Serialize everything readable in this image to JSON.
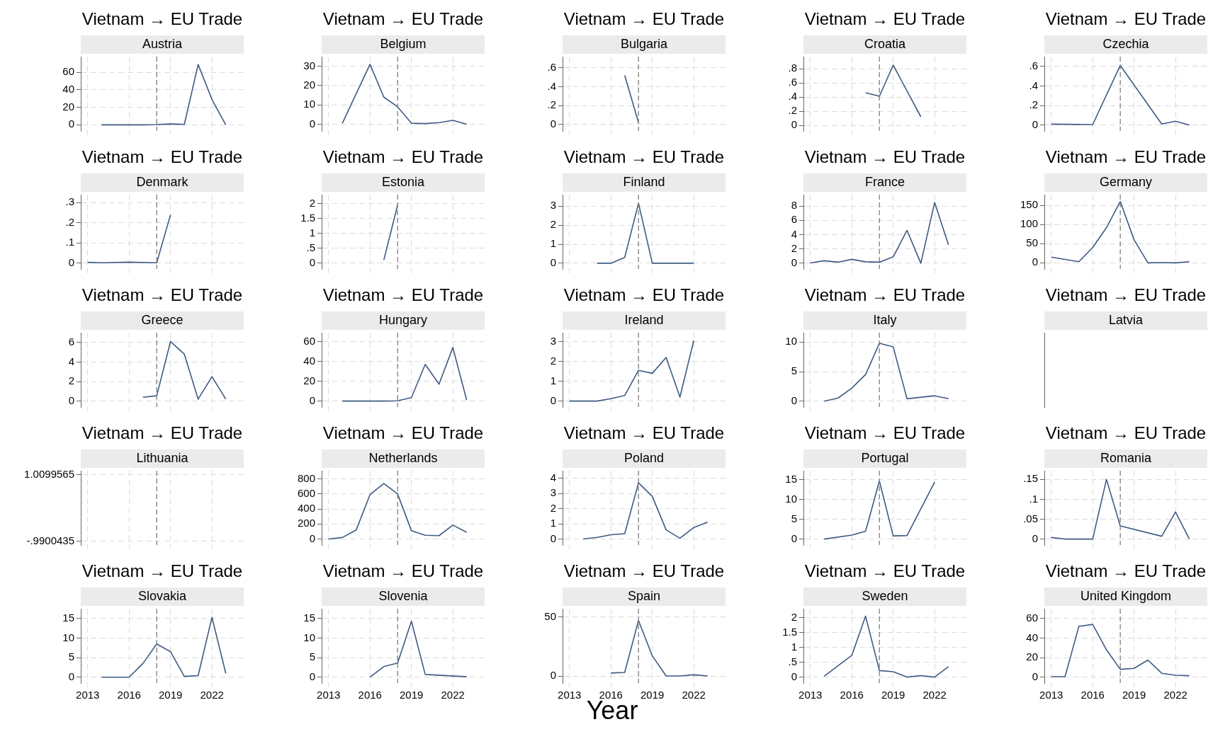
{
  "chart_data": [
    {
      "type": "line",
      "title": "Vietnam → EU Trade",
      "subtitle": "Austria",
      "xlim": [
        2012.5,
        2024.3
      ],
      "xticks": [
        2013,
        2016,
        2019,
        2022
      ],
      "ylim": [
        -7,
        78
      ],
      "yticks": [
        0,
        20,
        40,
        60
      ],
      "grid": true,
      "marker": "none",
      "tick_labels": "y",
      "ref_lines": [
        {
          "axis": "x",
          "value": 2018,
          "color": "#7f7f7f",
          "line_style": "dashed"
        }
      ],
      "series": [
        {
          "color": "#3e5a82",
          "x": [
            2014,
            2015,
            2016,
            2017,
            2018,
            2019,
            2020,
            2021,
            2022,
            2023
          ],
          "values": [
            0,
            0,
            0,
            0,
            0.3,
            1,
            0.5,
            69,
            29,
            0
          ]
        }
      ]
    },
    {
      "type": "line",
      "title": "Vietnam → EU Trade",
      "subtitle": "Belgium",
      "xlim": [
        2012.5,
        2024.3
      ],
      "xticks": [
        2013,
        2016,
        2019,
        2022
      ],
      "ylim": [
        -3.5,
        35
      ],
      "yticks": [
        0,
        10,
        20,
        30
      ],
      "grid": true,
      "marker": "none",
      "tick_labels": "y",
      "ref_lines": [
        {
          "axis": "x",
          "value": 2018,
          "color": "#7f7f7f",
          "line_style": "dashed"
        }
      ],
      "series": [
        {
          "color": "#3e5a82",
          "x": [
            2014,
            2016,
            2017,
            2018,
            2019,
            2020,
            2021,
            2022,
            2023
          ],
          "values": [
            0.5,
            31,
            14,
            9,
            0.5,
            0.3,
            0.8,
            2,
            0
          ]
        }
      ]
    },
    {
      "type": "line",
      "title": "Vietnam → EU Trade",
      "subtitle": "Bulgaria",
      "xlim": [
        2012.5,
        2024.3
      ],
      "xticks": [
        2013,
        2016,
        2019,
        2022
      ],
      "ylim": [
        -0.07,
        0.72
      ],
      "yticks": [
        0,
        {
          "value": 0.2,
          "label": ".2"
        },
        {
          "value": 0.4,
          "label": ".4"
        },
        {
          "value": 0.6,
          "label": ".6"
        }
      ],
      "grid": true,
      "marker": "none",
      "tick_labels": "y",
      "ref_lines": [
        {
          "axis": "x",
          "value": 2018,
          "color": "#7f7f7f",
          "line_style": "dashed"
        }
      ],
      "series": [
        {
          "color": "#3e5a82",
          "x": [
            2017,
            2018
          ],
          "values": [
            0.52,
            0.02
          ]
        }
      ]
    },
    {
      "type": "line",
      "title": "Vietnam → EU Trade",
      "subtitle": "Croatia",
      "xlim": [
        2012.5,
        2024.3
      ],
      "xticks": [
        2013,
        2016,
        2019,
        2022
      ],
      "ylim": [
        -0.08,
        0.97
      ],
      "yticks": [
        0,
        {
          "value": 0.2,
          "label": ".2"
        },
        {
          "value": 0.4,
          "label": ".4"
        },
        {
          "value": 0.6,
          "label": ".6"
        },
        {
          "value": 0.8,
          "label": ".8"
        }
      ],
      "grid": true,
      "marker": "none",
      "tick_labels": "y",
      "ref_lines": [
        {
          "axis": "x",
          "value": 2018,
          "color": "#7f7f7f",
          "line_style": "dashed"
        }
      ],
      "series": [
        {
          "color": "#3e5a82",
          "x": [
            2017,
            2018,
            2019,
            2021
          ],
          "values": [
            0.46,
            0.41,
            0.85,
            0.12
          ]
        }
      ]
    },
    {
      "type": "line",
      "title": "Vietnam → EU Trade",
      "subtitle": "Czechia",
      "xlim": [
        2012.5,
        2024.3
      ],
      "xticks": [
        2013,
        2016,
        2019,
        2022
      ],
      "ylim": [
        -0.06,
        0.7
      ],
      "yticks": [
        0,
        {
          "value": 0.2,
          "label": ".2"
        },
        {
          "value": 0.4,
          "label": ".4"
        },
        {
          "value": 0.6,
          "label": ".6"
        }
      ],
      "grid": true,
      "marker": "none",
      "tick_labels": "y",
      "ref_lines": [
        {
          "axis": "x",
          "value": 2018,
          "color": "#7f7f7f",
          "line_style": "dashed"
        }
      ],
      "series": [
        {
          "color": "#3e5a82",
          "x": [
            2013,
            2016,
            2018,
            2021,
            2022,
            2023
          ],
          "values": [
            0.01,
            0.005,
            0.61,
            0.01,
            0.04,
            0
          ]
        }
      ]
    },
    {
      "type": "line",
      "title": "Vietnam → EU Trade",
      "subtitle": "Denmark",
      "xlim": [
        2012.5,
        2024.3
      ],
      "xticks": [
        2013,
        2016,
        2019,
        2022
      ],
      "ylim": [
        -0.03,
        0.34
      ],
      "yticks": [
        0,
        {
          "value": 0.1,
          "label": ".1"
        },
        {
          "value": 0.2,
          "label": ".2"
        },
        {
          "value": 0.3,
          "label": ".3"
        }
      ],
      "grid": true,
      "marker": "none",
      "tick_labels": "y",
      "ref_lines": [
        {
          "axis": "x",
          "value": 2018,
          "color": "#7f7f7f",
          "line_style": "dashed"
        }
      ],
      "series": [
        {
          "color": "#3e5a82",
          "x": [
            2013,
            2014,
            2016,
            2018,
            2019
          ],
          "values": [
            0.003,
            0.001,
            0.004,
            0.001,
            0.24
          ]
        }
      ]
    },
    {
      "type": "line",
      "title": "Vietnam → EU Trade",
      "subtitle": "Estonia",
      "xlim": [
        2012.5,
        2024.3
      ],
      "xticks": [
        2013,
        2016,
        2019,
        2022
      ],
      "ylim": [
        -0.2,
        2.3
      ],
      "yticks": [
        0,
        {
          "value": 0.5,
          "label": ".5"
        },
        1,
        1.5,
        2
      ],
      "grid": true,
      "marker": "none",
      "tick_labels": "y",
      "ref_lines": [
        {
          "axis": "x",
          "value": 2018,
          "color": "#7f7f7f",
          "line_style": "dashed"
        }
      ],
      "series": [
        {
          "color": "#3e5a82",
          "x": [
            2017,
            2018
          ],
          "values": [
            0.1,
            1.95
          ]
        }
      ]
    },
    {
      "type": "line",
      "title": "Vietnam → EU Trade",
      "subtitle": "Finland",
      "xlim": [
        2012.5,
        2024.3
      ],
      "xticks": [
        2013,
        2016,
        2019,
        2022
      ],
      "ylim": [
        -0.3,
        3.6
      ],
      "yticks": [
        0,
        1,
        2,
        3
      ],
      "grid": true,
      "marker": "none",
      "tick_labels": "y",
      "ref_lines": [
        {
          "axis": "x",
          "value": 2018,
          "color": "#7f7f7f",
          "line_style": "dashed"
        }
      ],
      "series": [
        {
          "color": "#3e5a82",
          "x": [
            2015,
            2016,
            2017,
            2018,
            2019,
            2022
          ],
          "values": [
            0,
            0,
            0.3,
            3.15,
            0,
            0
          ]
        }
      ]
    },
    {
      "type": "line",
      "title": "Vietnam → EU Trade",
      "subtitle": "France",
      "xlim": [
        2012.5,
        2024.3
      ],
      "xticks": [
        2013,
        2016,
        2019,
        2022
      ],
      "ylim": [
        -0.8,
        9.6
      ],
      "yticks": [
        0,
        2,
        4,
        6,
        8
      ],
      "grid": true,
      "marker": "none",
      "tick_labels": "y",
      "ref_lines": [
        {
          "axis": "x",
          "value": 2018,
          "color": "#7f7f7f",
          "line_style": "dashed"
        }
      ],
      "series": [
        {
          "color": "#3e5a82",
          "x": [
            2013,
            2014,
            2015,
            2016,
            2017,
            2018,
            2019,
            2020,
            2021,
            2022,
            2023
          ],
          "values": [
            0.05,
            0.35,
            0.15,
            0.55,
            0.2,
            0.15,
            0.9,
            4.6,
            0,
            8.5,
            2.6
          ]
        }
      ]
    },
    {
      "type": "line",
      "title": "Vietnam → EU Trade",
      "subtitle": "Germany",
      "xlim": [
        2012.5,
        2024.3
      ],
      "xticks": [
        2013,
        2016,
        2019,
        2022
      ],
      "ylim": [
        -16,
        178
      ],
      "yticks": [
        0,
        50,
        100,
        150
      ],
      "grid": true,
      "marker": "none",
      "tick_labels": "y",
      "ref_lines": [
        {
          "axis": "x",
          "value": 2018,
          "color": "#7f7f7f",
          "line_style": "dashed"
        }
      ],
      "series": [
        {
          "color": "#3e5a82",
          "x": [
            2013,
            2015,
            2016,
            2017,
            2018,
            2019,
            2020,
            2021,
            2022,
            2023
          ],
          "values": [
            15,
            3,
            40,
            92,
            160,
            60,
            0,
            0.5,
            0,
            3
          ]
        }
      ]
    },
    {
      "type": "line",
      "title": "Vietnam → EU Trade",
      "subtitle": "Greece",
      "xlim": [
        2012.5,
        2024.3
      ],
      "xticks": [
        2013,
        2016,
        2019,
        2022
      ],
      "ylim": [
        -0.6,
        7
      ],
      "yticks": [
        0,
        2,
        4,
        6
      ],
      "grid": true,
      "marker": "none",
      "tick_labels": "y",
      "ref_lines": [
        {
          "axis": "x",
          "value": 2018,
          "color": "#7f7f7f",
          "line_style": "dashed"
        }
      ],
      "series": [
        {
          "color": "#3e5a82",
          "x": [
            2017,
            2018,
            2019,
            2020,
            2021,
            2022,
            2023
          ],
          "values": [
            0.4,
            0.55,
            6.1,
            4.8,
            0.2,
            2.5,
            0.2
          ]
        }
      ]
    },
    {
      "type": "line",
      "title": "Vietnam → EU Trade",
      "subtitle": "Hungary",
      "xlim": [
        2012.5,
        2024.3
      ],
      "xticks": [
        2013,
        2016,
        2019,
        2022
      ],
      "ylim": [
        -6,
        69
      ],
      "yticks": [
        0,
        20,
        40,
        60
      ],
      "grid": true,
      "marker": "none",
      "tick_labels": "y",
      "ref_lines": [
        {
          "axis": "x",
          "value": 2018,
          "color": "#7f7f7f",
          "line_style": "dashed"
        }
      ],
      "series": [
        {
          "color": "#3e5a82",
          "x": [
            2014,
            2015,
            2016,
            2017,
            2018,
            2019,
            2020,
            2021,
            2022,
            2023
          ],
          "values": [
            0,
            0,
            0,
            0,
            0.3,
            3.5,
            37,
            17,
            54,
            1
          ]
        }
      ]
    },
    {
      "type": "line",
      "title": "Vietnam → EU Trade",
      "subtitle": "Ireland",
      "xlim": [
        2012.5,
        2024.3
      ],
      "xticks": [
        2013,
        2016,
        2019,
        2022
      ],
      "ylim": [
        -0.3,
        3.45
      ],
      "yticks": [
        0,
        1,
        2,
        3
      ],
      "grid": true,
      "marker": "none",
      "tick_labels": "y",
      "ref_lines": [
        {
          "axis": "x",
          "value": 2018,
          "color": "#7f7f7f",
          "line_style": "dashed"
        }
      ],
      "series": [
        {
          "color": "#3e5a82",
          "x": [
            2013,
            2014,
            2015,
            2016,
            2017,
            2018,
            2019,
            2020,
            2021,
            2022
          ],
          "values": [
            0,
            0,
            0,
            0.12,
            0.28,
            1.55,
            1.4,
            2.2,
            0.2,
            3.05
          ]
        }
      ]
    },
    {
      "type": "line",
      "title": "Vietnam → EU Trade",
      "subtitle": "Italy",
      "xlim": [
        2012.5,
        2024.3
      ],
      "xticks": [
        2013,
        2016,
        2019,
        2022
      ],
      "ylim": [
        -1,
        11.6
      ],
      "yticks": [
        0,
        5,
        10
      ],
      "grid": true,
      "marker": "none",
      "tick_labels": "y",
      "ref_lines": [
        {
          "axis": "x",
          "value": 2018,
          "color": "#7f7f7f",
          "line_style": "dashed"
        }
      ],
      "series": [
        {
          "color": "#3e5a82",
          "x": [
            2014,
            2015,
            2016,
            2017,
            2018,
            2019,
            2020,
            2022,
            2023
          ],
          "values": [
            0,
            0.5,
            2.2,
            4.5,
            9.8,
            9.2,
            0.4,
            0.9,
            0.4
          ]
        }
      ]
    },
    {
      "type": "other",
      "title": "Vietnam → EU Trade",
      "subtitle": "Latvia"
    },
    {
      "type": "line",
      "title": "Vietnam → EU Trade",
      "subtitle": "Lithuania",
      "xlim": [
        2012.5,
        2024.3
      ],
      "xticks": [
        2013,
        2016,
        2019,
        2022
      ],
      "ylim": [
        -1.1,
        1.13
      ],
      "yticks": [
        {
          "value": -0.9900435,
          "label": "-.9900435"
        },
        1.0099565
      ],
      "grid": true,
      "marker": "none",
      "tick_labels": "y",
      "ref_lines": [
        {
          "axis": "x",
          "value": 2018,
          "color": "#7f7f7f",
          "line_style": "dashed"
        }
      ]
    },
    {
      "type": "line",
      "title": "Vietnam → EU Trade",
      "subtitle": "Netherlands",
      "xlim": [
        2012.5,
        2024.3
      ],
      "xticks": [
        2013,
        2016,
        2019,
        2022
      ],
      "ylim": [
        -80,
        910
      ],
      "yticks": [
        0,
        200,
        400,
        600,
        800
      ],
      "grid": true,
      "marker": "none",
      "tick_labels": "y",
      "ref_lines": [
        {
          "axis": "x",
          "value": 2018,
          "color": "#7f7f7f",
          "line_style": "dashed"
        }
      ],
      "series": [
        {
          "color": "#3e5a82",
          "x": [
            2013,
            2014,
            2015,
            2016,
            2017,
            2018,
            2019,
            2020,
            2021,
            2022,
            2023
          ],
          "values": [
            0,
            20,
            120,
            590,
            740,
            600,
            110,
            50,
            45,
            185,
            90
          ]
        }
      ]
    },
    {
      "type": "line",
      "title": "Vietnam → EU Trade",
      "subtitle": "Poland",
      "xlim": [
        2012.5,
        2024.3
      ],
      "xticks": [
        2013,
        2016,
        2019,
        2022
      ],
      "ylim": [
        -0.4,
        4.5
      ],
      "yticks": [
        0,
        1,
        2,
        3,
        4
      ],
      "grid": true,
      "marker": "none",
      "tick_labels": "y",
      "ref_lines": [
        {
          "axis": "x",
          "value": 2018,
          "color": "#7f7f7f",
          "line_style": "dashed"
        }
      ],
      "series": [
        {
          "color": "#3e5a82",
          "x": [
            2014,
            2015,
            2016,
            2017,
            2018,
            2019,
            2020,
            2021,
            2022,
            2023
          ],
          "values": [
            0,
            0.1,
            0.28,
            0.35,
            3.7,
            2.8,
            0.6,
            0.05,
            0.75,
            1.1
          ]
        }
      ]
    },
    {
      "type": "line",
      "title": "Vietnam → EU Trade",
      "subtitle": "Portugal",
      "xlim": [
        2012.5,
        2024.3
      ],
      "xticks": [
        2013,
        2016,
        2019,
        2022
      ],
      "ylim": [
        -1.5,
        17.3
      ],
      "yticks": [
        0,
        5,
        10,
        15
      ],
      "grid": true,
      "marker": "none",
      "tick_labels": "y",
      "ref_lines": [
        {
          "axis": "x",
          "value": 2018,
          "color": "#7f7f7f",
          "line_style": "dashed"
        }
      ],
      "series": [
        {
          "color": "#3e5a82",
          "x": [
            2014,
            2016,
            2017,
            2018,
            2019,
            2020,
            2022
          ],
          "values": [
            0,
            1,
            2,
            14.7,
            0.8,
            0.9,
            14.4
          ]
        }
      ]
    },
    {
      "type": "line",
      "title": "Vietnam → EU Trade",
      "subtitle": "Romania",
      "xlim": [
        2012.5,
        2024.3
      ],
      "xticks": [
        2013,
        2016,
        2019,
        2022
      ],
      "ylim": [
        -0.015,
        0.172
      ],
      "yticks": [
        0,
        {
          "value": 0.05,
          "label": ".05"
        },
        {
          "value": 0.1,
          "label": ".1"
        },
        {
          "value": 0.15,
          "label": ".15"
        }
      ],
      "grid": true,
      "marker": "none",
      "tick_labels": "y",
      "ref_lines": [
        {
          "axis": "x",
          "value": 2018,
          "color": "#7f7f7f",
          "line_style": "dashed"
        }
      ],
      "series": [
        {
          "color": "#3e5a82",
          "x": [
            2013,
            2014,
            2016,
            2017,
            2018,
            2021,
            2022,
            2023
          ],
          "values": [
            0.004,
            0,
            0,
            0.15,
            0.033,
            0.007,
            0.068,
            0
          ]
        }
      ]
    },
    {
      "type": "line",
      "title": "Vietnam → EU Trade",
      "subtitle": "Slovakia",
      "xlim": [
        2012.5,
        2024.3
      ],
      "xticks": [
        2013,
        2016,
        2019,
        2022
      ],
      "ylim": [
        -1.5,
        17.5
      ],
      "yticks": [
        0,
        5,
        10,
        15
      ],
      "grid": true,
      "marker": "none",
      "ref_lines": [
        {
          "axis": "x",
          "value": 2018,
          "color": "#7f7f7f",
          "line_style": "dashed"
        }
      ],
      "series": [
        {
          "color": "#3e5a82",
          "x": [
            2014,
            2016,
            2017,
            2018,
            2019,
            2020,
            2021,
            2022,
            2023
          ],
          "values": [
            0,
            0,
            3.5,
            8.5,
            6.5,
            0.2,
            0.4,
            15.3,
            1
          ]
        }
      ]
    },
    {
      "type": "line",
      "title": "Vietnam → EU Trade",
      "subtitle": "Slovenia",
      "xlim": [
        2012.5,
        2024.3
      ],
      "xticks": [
        2013,
        2016,
        2019,
        2022
      ],
      "ylim": [
        -1.5,
        17.5
      ],
      "yticks": [
        0,
        5,
        10,
        15
      ],
      "grid": true,
      "marker": "none",
      "ref_lines": [
        {
          "axis": "x",
          "value": 2018,
          "color": "#7f7f7f",
          "line_style": "dashed"
        }
      ],
      "series": [
        {
          "color": "#3e5a82",
          "x": [
            2016,
            2017,
            2018,
            2019,
            2020,
            2023
          ],
          "values": [
            0,
            2.7,
            3.6,
            14.3,
            0.7,
            0.1
          ]
        }
      ]
    },
    {
      "type": "line",
      "title": "Vietnam → EU Trade",
      "subtitle": "Spain",
      "xlabel": "Year",
      "xlim": [
        2012.5,
        2024.3
      ],
      "xticks": [
        2013,
        2016,
        2019,
        2022
      ],
      "ylim": [
        -6,
        57
      ],
      "yticks": [
        0,
        50
      ],
      "grid": true,
      "marker": "none",
      "ref_lines": [
        {
          "axis": "x",
          "value": 2018,
          "color": "#7f7f7f",
          "line_style": "dashed"
        }
      ],
      "series": [
        {
          "color": "#3e5a82",
          "x": [
            2016,
            2017,
            2018,
            2019,
            2020,
            2021,
            2022,
            2023
          ],
          "values": [
            2.5,
            3,
            47,
            17,
            0,
            0,
            1,
            0
          ]
        }
      ]
    },
    {
      "type": "line",
      "title": "Vietnam → EU Trade",
      "subtitle": "Sweden",
      "xlim": [
        2012.5,
        2024.3
      ],
      "xticks": [
        2013,
        2016,
        2019,
        2022
      ],
      "ylim": [
        -0.2,
        2.3
      ],
      "yticks": [
        0,
        {
          "value": 0.5,
          "label": ".5"
        },
        1,
        1.5,
        2
      ],
      "grid": true,
      "marker": "none",
      "ref_lines": [
        {
          "axis": "x",
          "value": 2018,
          "color": "#7f7f7f",
          "line_style": "dashed"
        }
      ],
      "series": [
        {
          "color": "#3e5a82",
          "x": [
            2014,
            2016,
            2017,
            2018,
            2019,
            2020,
            2021,
            2022,
            2023
          ],
          "values": [
            0.03,
            0.73,
            2.05,
            0.22,
            0.18,
            0,
            0.05,
            0,
            0.35
          ]
        }
      ]
    },
    {
      "type": "line",
      "title": "Vietnam → EU Trade",
      "subtitle": "United Kingdom",
      "xlim": [
        2012.5,
        2024.3
      ],
      "xticks": [
        2013,
        2016,
        2019,
        2022
      ],
      "ylim": [
        -6,
        70
      ],
      "yticks": [
        0,
        20,
        40,
        60
      ],
      "grid": true,
      "marker": "none",
      "ref_lines": [
        {
          "axis": "x",
          "value": 2018,
          "color": "#7f7f7f",
          "line_style": "dashed"
        }
      ],
      "series": [
        {
          "color": "#3e5a82",
          "x": [
            2013,
            2014,
            2015,
            2016,
            2017,
            2018,
            2019,
            2020,
            2021,
            2022,
            2023
          ],
          "values": [
            0.5,
            0.5,
            52,
            54,
            28,
            8,
            9,
            17.5,
            4,
            2,
            1.5
          ]
        }
      ]
    }
  ]
}
